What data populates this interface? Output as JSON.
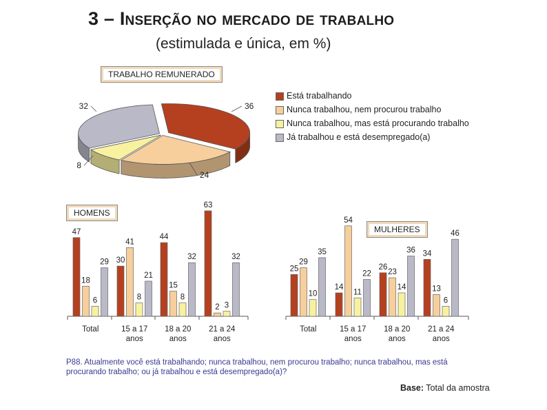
{
  "header": {
    "number": "3",
    "dash": "–",
    "title": "Inserção no mercado de trabalho",
    "subtitle": "(estimulada e única, em %)"
  },
  "colors": {
    "trabalhando": "#b5401f",
    "nunca_nao_procurou": "#f6cf9c",
    "nunca_procurando": "#f8f1a0",
    "desempregado": "#b9b9c8"
  },
  "chart_data": [
    {
      "type": "pie",
      "title": "TRABALHO REMUNERADO",
      "labels": [
        "Está trabalhando",
        "Nunca trabalhou, nem procurou trabalho",
        "Nunca trabalhou, mas está procurando trabalho",
        "Já trabalhou e está desempregado(a)"
      ],
      "values": [
        36,
        24,
        8,
        32
      ]
    },
    {
      "type": "bar",
      "title": "HOMENS",
      "categories": [
        "Total",
        "15 a 17 anos",
        "18 a 20 anos",
        "21 a 24 anos"
      ],
      "series": [
        {
          "name": "Está trabalhando",
          "values": [
            47,
            30,
            44,
            63
          ]
        },
        {
          "name": "Nunca trabalhou, nem procurou trabalho",
          "values": [
            18,
            41,
            15,
            2
          ]
        },
        {
          "name": "Nunca trabalhou, mas está procurando trabalho",
          "values": [
            6,
            8,
            8,
            3
          ]
        },
        {
          "name": "Já trabalhou e está desempregado(a)",
          "values": [
            29,
            21,
            32,
            32
          ]
        }
      ],
      "ylim": [
        0,
        65
      ]
    },
    {
      "type": "bar",
      "title": "MULHERES",
      "categories": [
        "Total",
        "15 a 17 anos",
        "18 a 20 anos",
        "21 a 24 anos"
      ],
      "series": [
        {
          "name": "Está trabalhando",
          "values": [
            25,
            14,
            26,
            34
          ]
        },
        {
          "name": "Nunca trabalhou, nem procurou trabalho",
          "values": [
            29,
            54,
            23,
            13
          ]
        },
        {
          "name": "Nunca trabalhou, mas está procurando trabalho",
          "values": [
            10,
            11,
            14,
            6
          ]
        },
        {
          "name": "Já trabalhou e está desempregado(a)",
          "values": [
            35,
            22,
            36,
            46
          ]
        }
      ],
      "ylim": [
        0,
        65
      ]
    }
  ],
  "footer": {
    "question": "P88. Atualmente você está trabalhando; nunca trabalhou, nem procurou trabalho; nunca trabalhou, mas está procurando trabalho; ou já trabalhou e está desempregado(a)?",
    "base_label": "Base:",
    "base_value": "Total da amostra"
  }
}
